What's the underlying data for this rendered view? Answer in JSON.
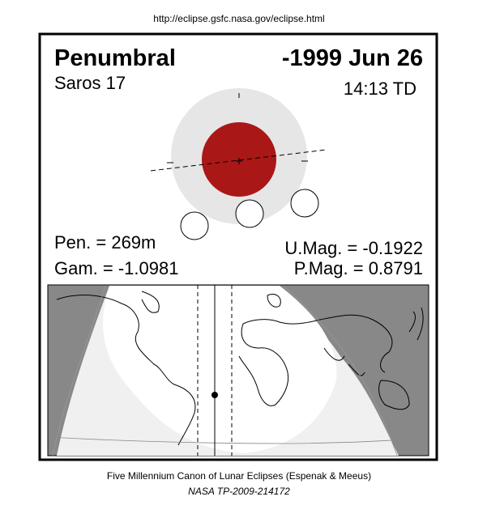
{
  "url": "http://eclipse.gsfc.nasa.gov/eclipse.html",
  "header": {
    "type": "Penumbral",
    "date": "-1999 Jun 26",
    "saros": "Saros  17",
    "time": "14:13 TD"
  },
  "stats": {
    "pen": "Pen. = 269m",
    "gam": "Gam. = -1.0981",
    "umag": "U.Mag. = -0.1922",
    "pmag": "P.Mag. = 0.8791"
  },
  "footer": {
    "line1": "Five Millennium Canon of Lunar Eclipses (Espenak & Meeus)",
    "line2": "NASA TP-2009-214172"
  }
}
